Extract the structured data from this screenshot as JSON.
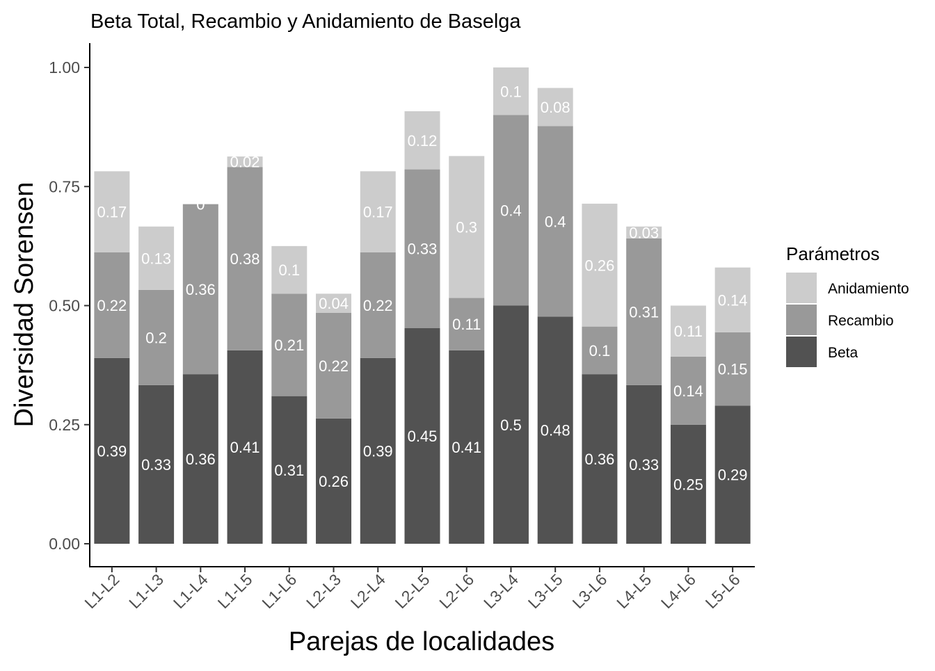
{
  "chart_data": {
    "type": "bar",
    "stacked": true,
    "title": "Beta Total, Recambio y Anidamiento de Baselga",
    "xlabel": "Parejas de localidades",
    "ylabel": "Diversidad Sorensen",
    "ylim": [
      -0.045,
      1.05
    ],
    "yticks": [
      "0.00",
      "0.25",
      "0.50",
      "0.75",
      "1.00"
    ],
    "ytick_values": [
      0,
      0.25,
      0.5,
      0.75,
      1.0
    ],
    "grid": false,
    "legend_position": "right",
    "legend_title": "Parámetros",
    "categories": [
      "L1-L2",
      "L1-L3",
      "L1-L4",
      "L1-L5",
      "L1-L6",
      "L2-L3",
      "L2-L4",
      "L2-L5",
      "L2-L6",
      "L3-L4",
      "L3-L5",
      "L3-L6",
      "L4-L5",
      "L4-L6",
      "L5-L6"
    ],
    "series": [
      {
        "name": "Beta",
        "color": "#525252",
        "values": [
          0.39,
          0.333,
          0.356,
          0.406,
          0.31,
          0.263,
          0.39,
          0.453,
          0.406,
          0.5,
          0.477,
          0.356,
          0.333,
          0.25,
          0.29
        ],
        "labels": [
          "0.39",
          "0.33",
          "0.36",
          "0.41",
          "0.31",
          "0.26",
          "0.39",
          "0.45",
          "0.41",
          "0.5",
          "0.48",
          "0.36",
          "0.33",
          "0.25",
          "0.29"
        ]
      },
      {
        "name": "Recambio",
        "color": "#999999",
        "values": [
          0.222,
          0.2,
          0.357,
          0.385,
          0.215,
          0.222,
          0.222,
          0.333,
          0.11,
          0.4,
          0.4,
          0.1,
          0.308,
          0.143,
          0.154
        ],
        "labels": [
          "0.22",
          "0.2",
          "0.36",
          "0.38",
          "0.21",
          "0.22",
          "0.22",
          "0.33",
          "0.11",
          "0.4",
          "0.4",
          "0.1",
          "0.31",
          "0.14",
          "0.15"
        ]
      },
      {
        "name": "Anidamiento",
        "color": "#cccccc",
        "values": [
          0.17,
          0.133,
          0,
          0.022,
          0.1,
          0.04,
          0.17,
          0.122,
          0.298,
          0.1,
          0.08,
          0.258,
          0.025,
          0.107,
          0.136
        ],
        "labels": [
          "0.17",
          "0.13",
          "0",
          "0.02",
          "0.1",
          "0.04",
          "0.17",
          "0.12",
          "0.3",
          "0.1",
          "0.08",
          "0.26",
          "0.03",
          "0.11",
          "0.14"
        ]
      }
    ],
    "legend_order": [
      "Anidamiento",
      "Recambio",
      "Beta"
    ]
  }
}
